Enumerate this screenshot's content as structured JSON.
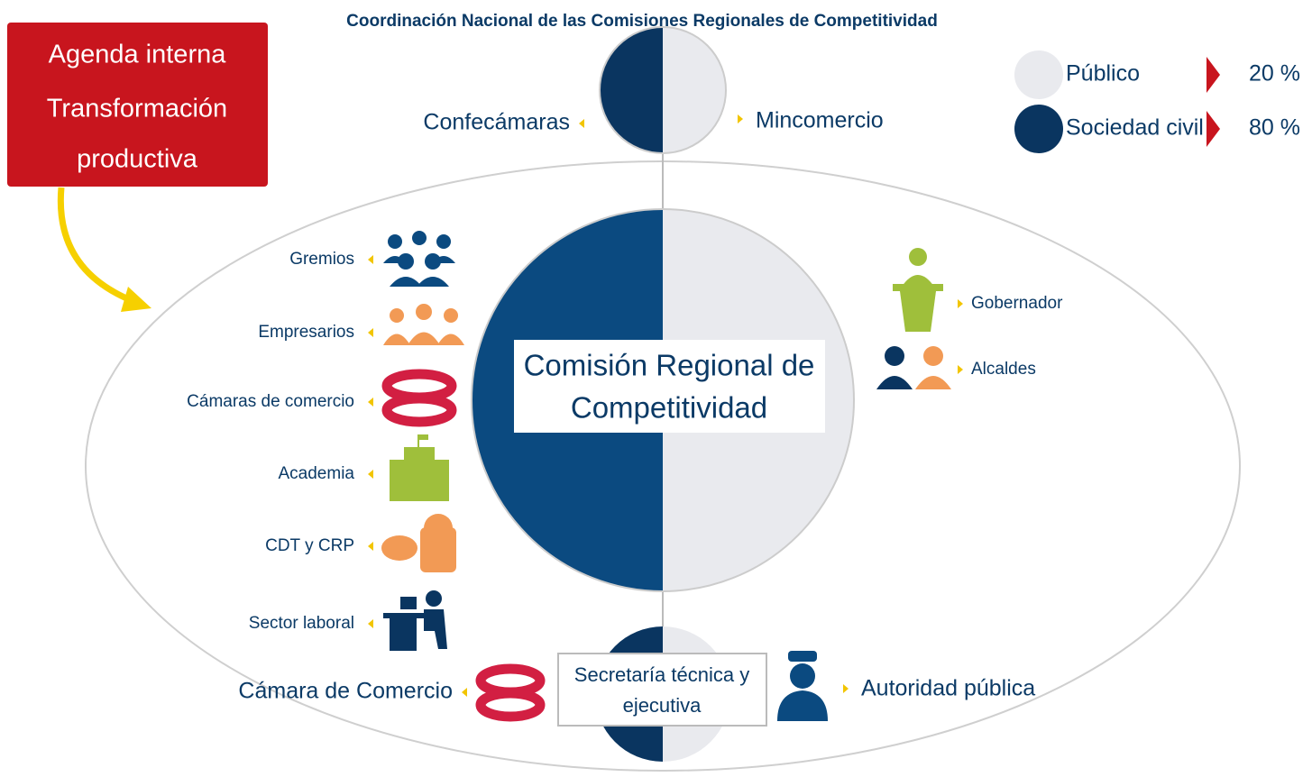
{
  "title": "Coordinación Nacional de las Comisiones Regionales de Competitividad",
  "agenda": {
    "lines": [
      "Agenda interna",
      "Transformación",
      "productiva"
    ]
  },
  "legend": [
    {
      "label": "Público",
      "value": "20 %"
    },
    {
      "label": "Sociedad civil",
      "value": "80 %"
    }
  ],
  "top": {
    "left": "Confecámaras",
    "right": "Mincomercio"
  },
  "center": {
    "lines": [
      "Comisión Regional de",
      "Competitividad"
    ]
  },
  "left_members": [
    "Gremios",
    "Empresarios",
    "Cámaras de comercio",
    "Academia",
    "CDT y CRP",
    "Sector laboral"
  ],
  "right_members": [
    "Gobernador",
    "Alcaldes"
  ],
  "bottom": {
    "left": "Cámara de Comercio",
    "center_lines": [
      "Secretaría técnica y",
      "ejecutiva"
    ],
    "right": "Autoridad pública"
  }
}
